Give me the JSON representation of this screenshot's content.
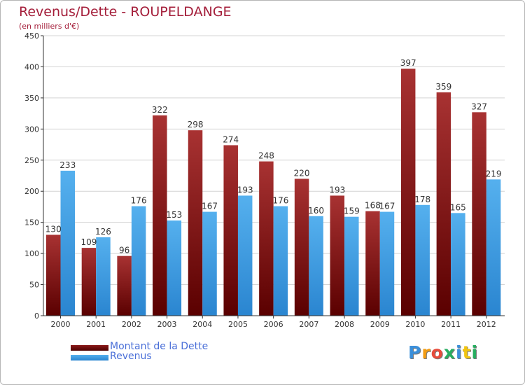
{
  "chart_data": {
    "type": "bar",
    "title": "Revenus/Dette - ROUPELDANGE",
    "subtitle": "(en milliers d'€)",
    "xlabel": "",
    "ylabel": "",
    "ylim": [
      0,
      450
    ],
    "yticks": [
      0,
      50,
      100,
      150,
      200,
      250,
      300,
      350,
      400,
      450
    ],
    "grid": true,
    "legend_position": "bottom-left",
    "categories": [
      "2000",
      "2001",
      "2002",
      "2003",
      "2004",
      "2005",
      "2006",
      "2007",
      "2008",
      "2009",
      "2010",
      "2011",
      "2012"
    ],
    "series": [
      {
        "name": "Montant de la Dette",
        "color": "#8b1a1a",
        "values": [
          130,
          109,
          96,
          322,
          298,
          274,
          248,
          220,
          193,
          168,
          397,
          359,
          327
        ]
      },
      {
        "name": "Revenus",
        "color": "#3f9de2",
        "values": [
          233,
          126,
          176,
          153,
          167,
          193,
          176,
          160,
          159,
          167,
          178,
          165,
          219
        ]
      }
    ]
  },
  "colors": {
    "title": "#a41e3a",
    "dette_dark": "#5a0000",
    "dette_light": "#a83232",
    "revenus_dark": "#2a85d0",
    "revenus_light": "#55b0ee",
    "axis": "#333333",
    "grid": "#d4d4d4"
  },
  "logo": {
    "letters": [
      "P",
      "r",
      "o",
      "x",
      "i",
      "t",
      "i"
    ],
    "colors": [
      "#3b8fd9",
      "#f39c12",
      "#e74c3c",
      "#27ae60",
      "#3b8fd9",
      "#f1c40f",
      "#27ae60"
    ]
  }
}
